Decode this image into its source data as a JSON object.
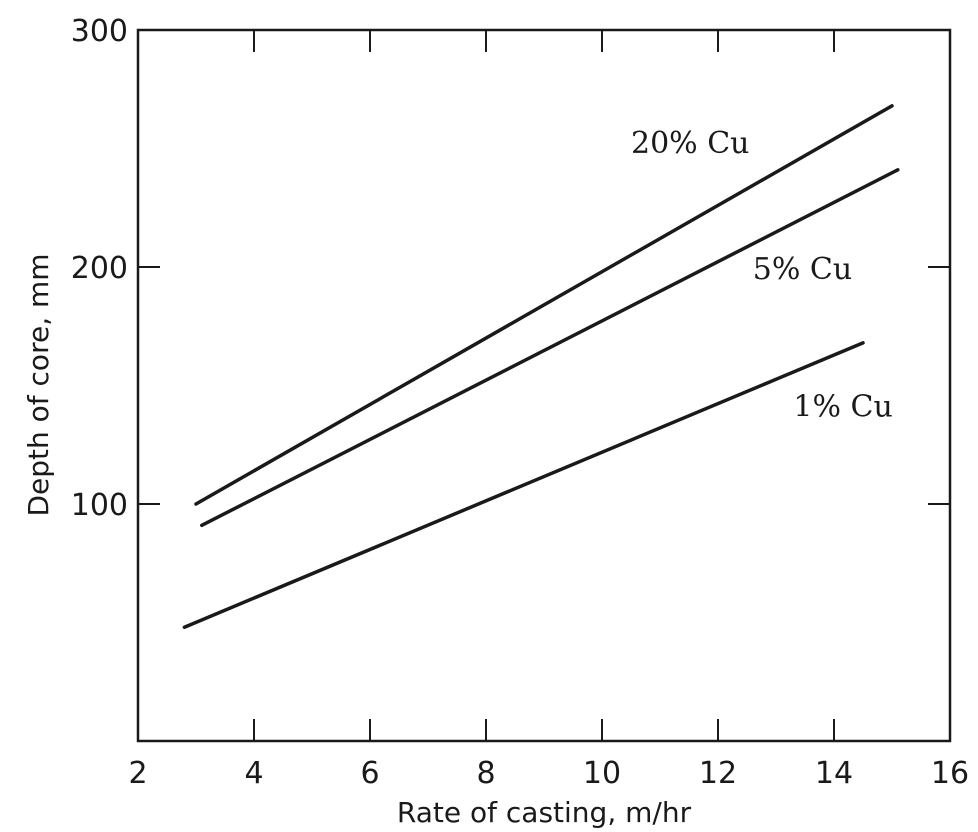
{
  "chart_data": {
    "type": "line",
    "title": "",
    "xlabel": "Rate of casting, m/hr",
    "ylabel": "Depth of core, mm",
    "xlim": [
      2,
      16
    ],
    "ylim": [
      0,
      300
    ],
    "x_ticks": [
      2,
      4,
      6,
      8,
      10,
      12,
      14,
      16
    ],
    "y_ticks": [
      100,
      200,
      300
    ],
    "grid": false,
    "legend": "none (series labeled directly on lines)",
    "series": [
      {
        "name": "20% Cu",
        "x": [
          3.0,
          15.0
        ],
        "y": [
          100,
          268
        ]
      },
      {
        "name": "5% Cu",
        "x": [
          3.1,
          15.1
        ],
        "y": [
          91,
          241
        ]
      },
      {
        "name": "1% Cu",
        "x": [
          2.8,
          14.5
        ],
        "y": [
          48,
          168
        ]
      }
    ],
    "series_label_anchors": [
      {
        "name": "20% Cu",
        "x": 10.5,
        "y": 248
      },
      {
        "name": "5% Cu",
        "x": 12.6,
        "y": 195
      },
      {
        "name": "1% Cu",
        "x": 13.3,
        "y": 137
      }
    ]
  }
}
